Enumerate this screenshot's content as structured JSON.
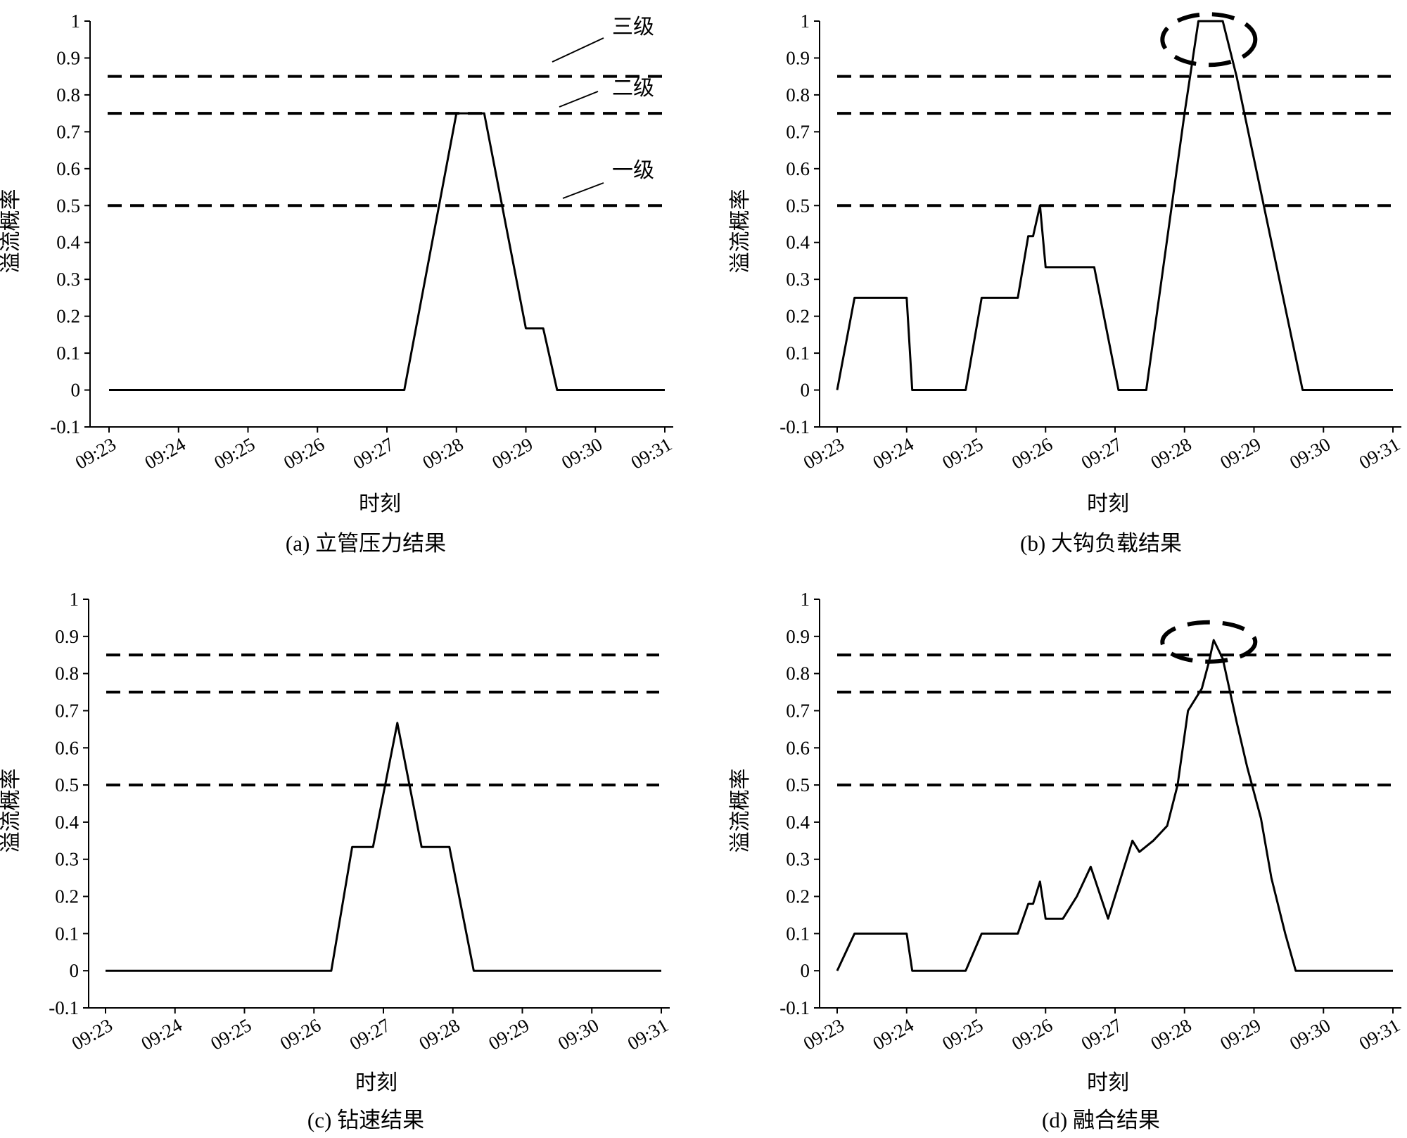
{
  "chart_data": [
    {
      "id": "a",
      "type": "line",
      "caption": "(a) 立管压力结果",
      "xlabel": "时刻",
      "ylabel": "溢流概率",
      "x_ticks": [
        "09:23",
        "09:24",
        "09:25",
        "09:26",
        "09:27",
        "09:28",
        "09:29",
        "09:30",
        "09:31"
      ],
      "y_ticks": [
        "-0.1",
        "0",
        "0.1",
        "0.2",
        "0.3",
        "0.4",
        "0.5",
        "0.6",
        "0.7",
        "0.8",
        "0.9",
        "1"
      ],
      "xlim": [
        0,
        8
      ],
      "ylim": [
        -0.1,
        1
      ],
      "thresholds": [
        0.5,
        0.75,
        0.85
      ],
      "threshold_labels": [
        {
          "text": "三级",
          "level": 0.85
        },
        {
          "text": "二级",
          "level": 0.75
        },
        {
          "text": "一级",
          "level": 0.5
        }
      ],
      "series": [
        {
          "x": [
            0.0,
            4.25,
            5.0,
            5.4,
            6.0,
            6.25,
            6.45,
            8.0
          ],
          "y": [
            0.0,
            0.0,
            0.75,
            0.75,
            0.167,
            0.167,
            0.0,
            0.0
          ]
        }
      ],
      "highlight": null
    },
    {
      "id": "b",
      "type": "line",
      "caption": "(b) 大钩负载结果",
      "xlabel": "时刻",
      "ylabel": "溢流概率",
      "x_ticks": [
        "09:23",
        "09:24",
        "09:25",
        "09:26",
        "09:27",
        "09:28",
        "09:29",
        "09:30",
        "09:31"
      ],
      "y_ticks": [
        "-0.1",
        "0",
        "0.1",
        "0.2",
        "0.3",
        "0.4",
        "0.5",
        "0.6",
        "0.7",
        "0.8",
        "0.9",
        "1"
      ],
      "xlim": [
        0,
        8
      ],
      "ylim": [
        -0.1,
        1
      ],
      "thresholds": [
        0.5,
        0.75,
        0.85
      ],
      "threshold_labels": [],
      "series": [
        {
          "x": [
            0.0,
            0.25,
            1.0,
            1.08,
            1.85,
            2.08,
            2.6,
            2.75,
            2.82,
            2.92,
            3.0,
            3.7,
            4.05,
            4.45,
            5.0,
            5.2,
            5.55,
            5.75,
            6.7,
            8.0
          ],
          "y": [
            0.0,
            0.25,
            0.25,
            0.0,
            0.0,
            0.25,
            0.25,
            0.417,
            0.417,
            0.5,
            0.333,
            0.333,
            0.0,
            0.0,
            0.75,
            1.0,
            1.0,
            0.85,
            0.0,
            0.0
          ]
        }
      ],
      "highlight": {
        "x": 5.35,
        "y": 0.95
      }
    },
    {
      "id": "c",
      "type": "line",
      "caption": "(c) 钻速结果",
      "xlabel": "时刻",
      "ylabel": "溢流概率",
      "x_ticks": [
        "09:23",
        "09:24",
        "09:25",
        "09:26",
        "09:27",
        "09:28",
        "09:29",
        "09:30",
        "09:31"
      ],
      "y_ticks": [
        "-0.1",
        "0",
        "0.1",
        "0.2",
        "0.3",
        "0.4",
        "0.5",
        "0.6",
        "0.7",
        "0.8",
        "0.9",
        "1"
      ],
      "xlim": [
        0,
        8
      ],
      "ylim": [
        -0.1,
        1
      ],
      "thresholds": [
        0.5,
        0.75,
        0.85
      ],
      "threshold_labels": [],
      "series": [
        {
          "x": [
            0.0,
            3.25,
            3.55,
            3.85,
            4.2,
            4.55,
            4.95,
            5.3,
            8.0
          ],
          "y": [
            0.0,
            0.0,
            0.333,
            0.333,
            0.667,
            0.333,
            0.333,
            0.0,
            0.0
          ]
        }
      ],
      "highlight": null
    },
    {
      "id": "d",
      "type": "line",
      "caption": "(d) 融合结果",
      "xlabel": "时刻",
      "ylabel": "溢流概率",
      "x_ticks": [
        "09:23",
        "09:24",
        "09:25",
        "09:26",
        "09:27",
        "09:28",
        "09:29",
        "09:30",
        "09:31"
      ],
      "y_ticks": [
        "-0.1",
        "0",
        "0.1",
        "0.2",
        "0.3",
        "0.4",
        "0.5",
        "0.6",
        "0.7",
        "0.8",
        "0.9",
        "1"
      ],
      "xlim": [
        0,
        8
      ],
      "ylim": [
        -0.1,
        1
      ],
      "thresholds": [
        0.5,
        0.75,
        0.85
      ],
      "threshold_labels": [],
      "series": [
        {
          "x": [
            0.0,
            0.25,
            1.0,
            1.08,
            1.85,
            2.08,
            2.6,
            2.75,
            2.82,
            2.92,
            3.0,
            3.25,
            3.45,
            3.65,
            3.9,
            4.25,
            4.35,
            4.55,
            4.75,
            4.9,
            5.05,
            5.25,
            5.35,
            5.42,
            5.55,
            5.75,
            5.9,
            6.1,
            6.25,
            6.45,
            6.6,
            8.0
          ],
          "y": [
            0.0,
            0.1,
            0.1,
            0.0,
            0.0,
            0.1,
            0.1,
            0.18,
            0.18,
            0.24,
            0.14,
            0.14,
            0.2,
            0.28,
            0.14,
            0.35,
            0.32,
            0.35,
            0.39,
            0.5,
            0.7,
            0.76,
            0.83,
            0.89,
            0.84,
            0.67,
            0.55,
            0.41,
            0.25,
            0.1,
            0.0,
            0.0
          ]
        }
      ],
      "highlight": {
        "x": 5.35,
        "y": 0.885
      }
    }
  ]
}
